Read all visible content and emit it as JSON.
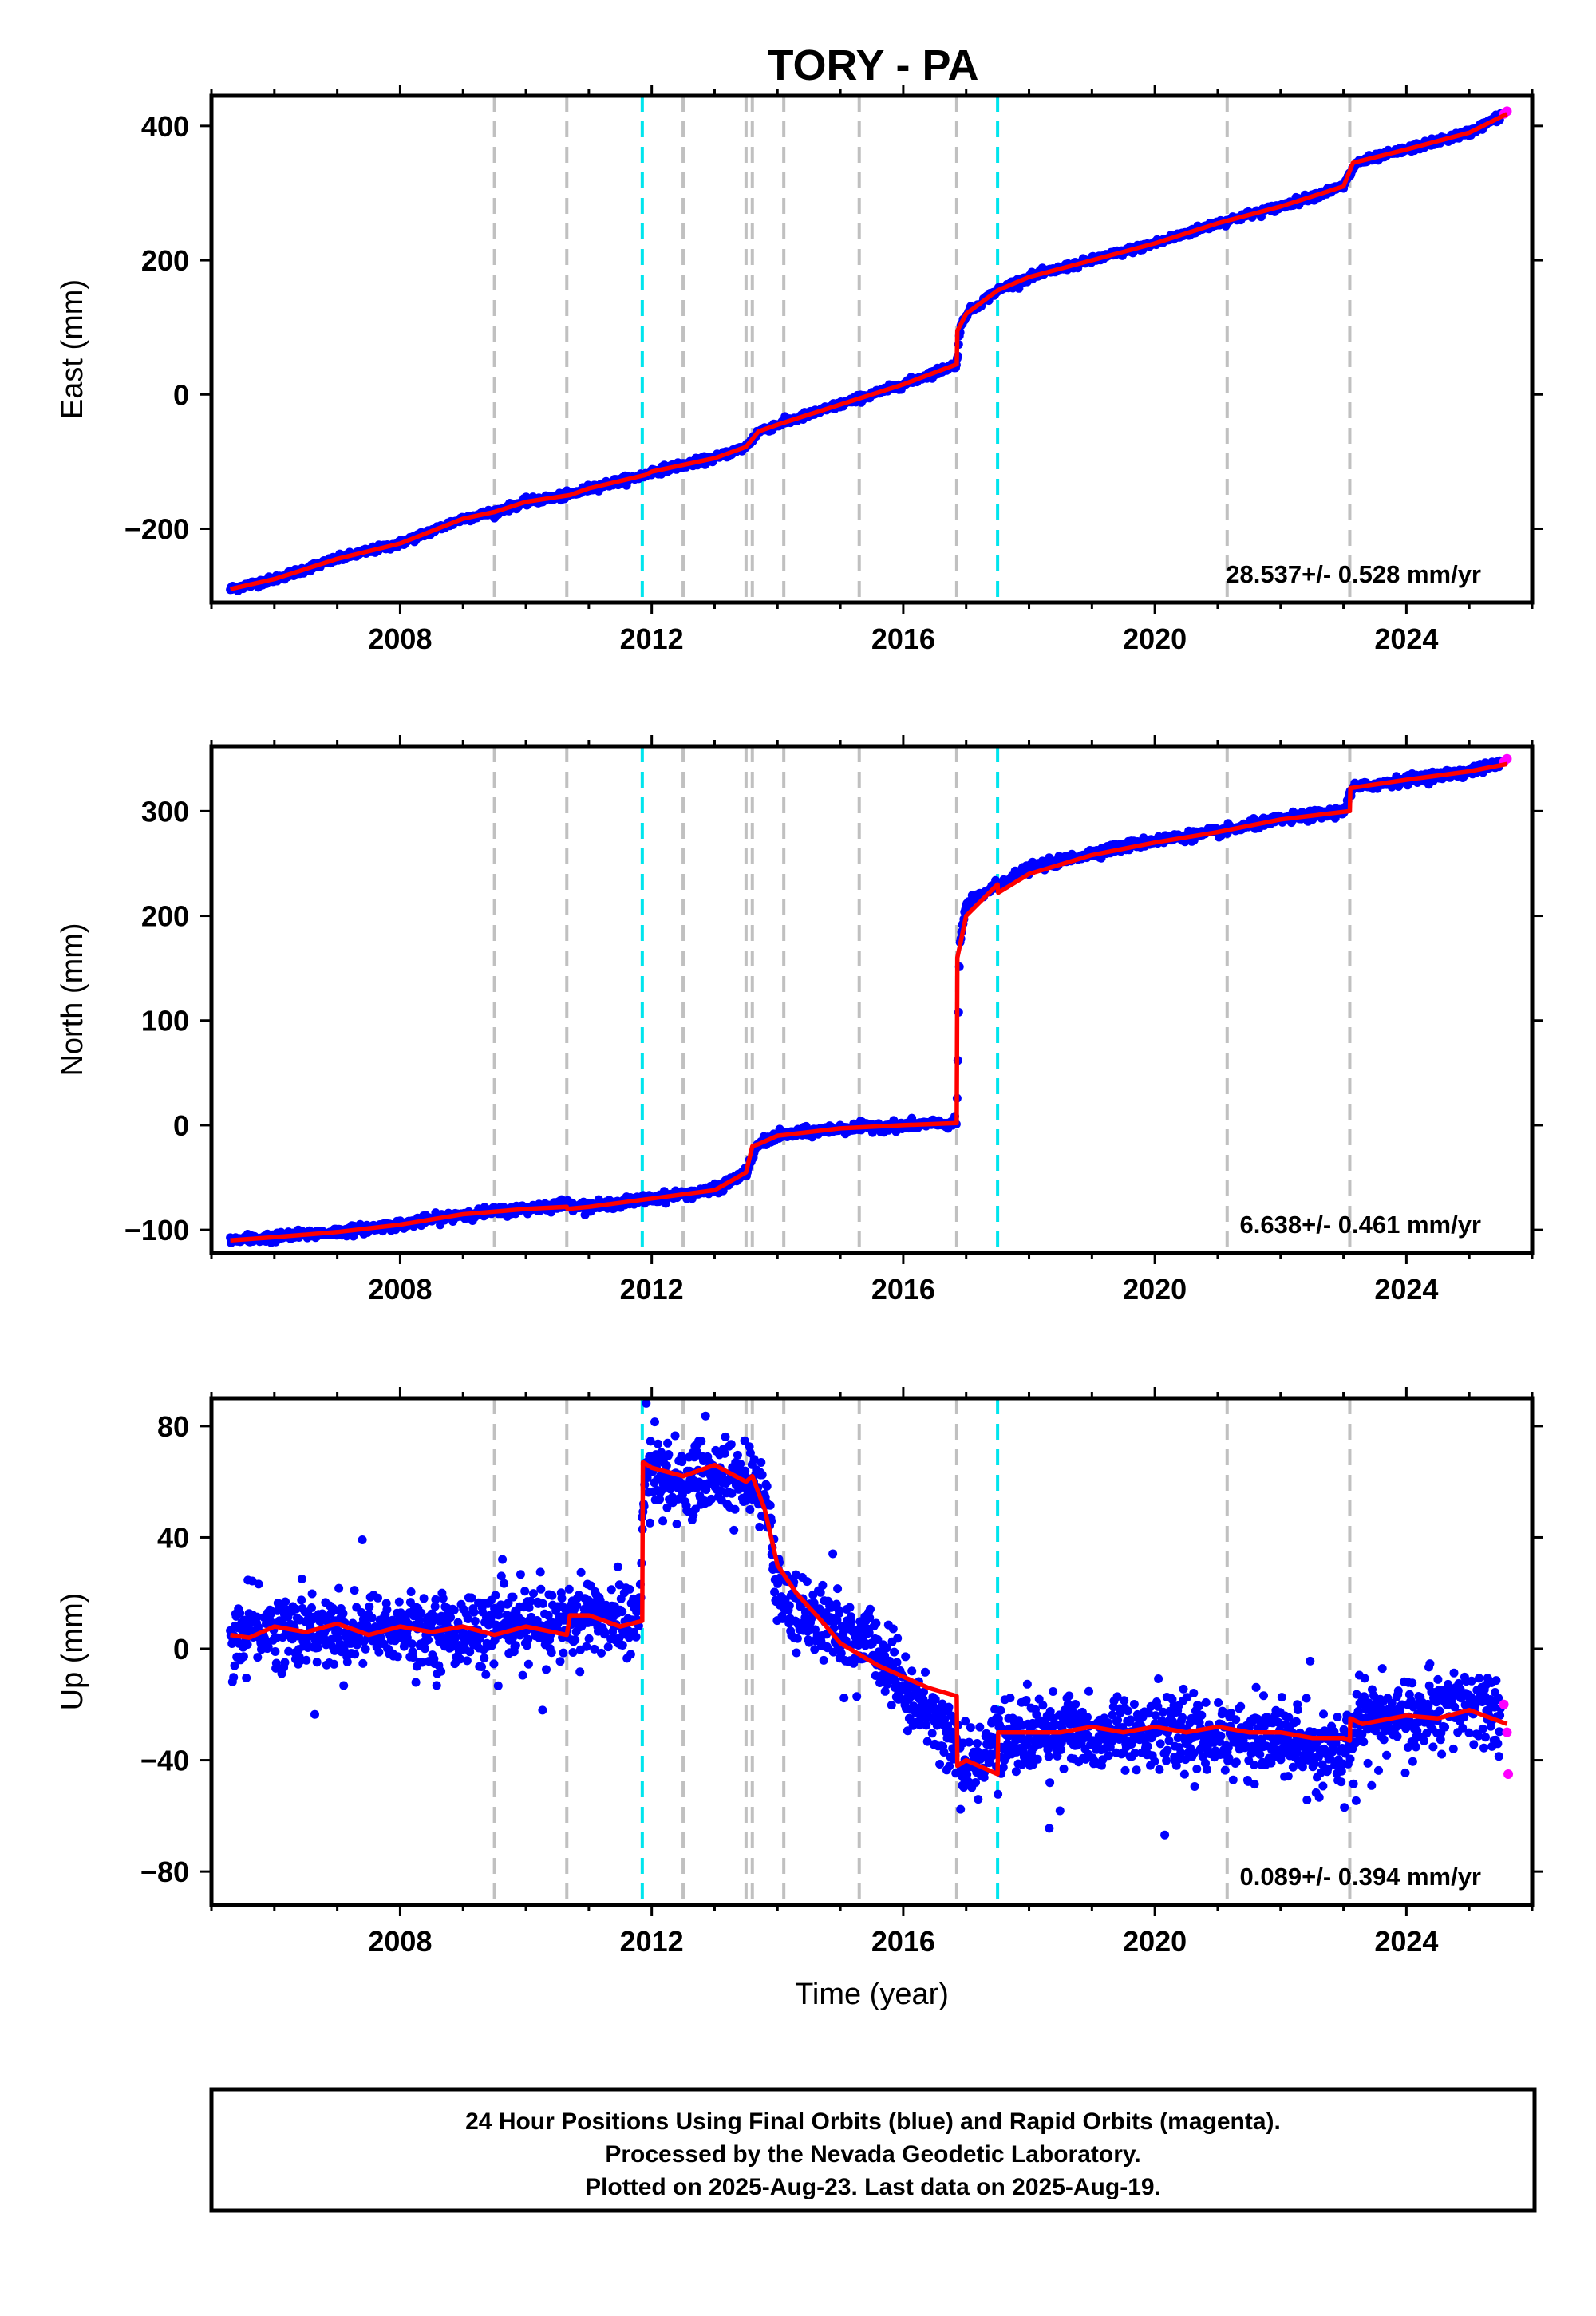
{
  "title": "TORY - PA",
  "footer": {
    "line1": "24 Hour Positions Using Final Orbits (blue) and Rapid Orbits (magenta).",
    "line2": "Processed by the Nevada Geodetic Laboratory.",
    "line3": "Plotted on 2025-Aug-23. Last data on 2025-Aug-19."
  },
  "colors": {
    "final_points": "#0000ff",
    "rapid_points": "#ff00ff",
    "model": "#ff0000",
    "gray_event": "#c0c0c0",
    "cyan_event": "#00e5ee"
  },
  "chart_data": [
    {
      "type": "scatter",
      "ylabel": "East (mm)",
      "xlabel": "",
      "xlim": [
        2005.0,
        2026.0
      ],
      "ylim": [
        -310,
        445
      ],
      "xticks": [
        2008,
        2012,
        2016,
        2020,
        2024
      ],
      "yticks": [
        -200,
        0,
        200,
        400
      ],
      "ytick_labels": [
        "−200",
        "0",
        "200",
        "400"
      ],
      "rate_label": "28.537+/- 0.528 mm/yr",
      "series": [
        {
          "name": "Final Orbits",
          "style": "points",
          "x": [
            2005.3,
            2006.0,
            2007.0,
            2008.0,
            2009.0,
            2009.5,
            2010.0,
            2010.7,
            2011.0,
            2011.9,
            2012.0,
            2013.0,
            2013.5,
            2013.7,
            2014.0,
            2015.0,
            2016.0,
            2016.85,
            2016.9,
            2017.0,
            2017.5,
            2018.0,
            2019.0,
            2020.0,
            2021.0,
            2022.0,
            2023.0,
            2023.2,
            2024.0,
            2025.0,
            2025.5
          ],
          "y": [
            -290,
            -275,
            -245,
            -222,
            -185,
            -175,
            -160,
            -150,
            -140,
            -120,
            -115,
            -95,
            -78,
            -55,
            -45,
            -15,
            15,
            45,
            95,
            120,
            155,
            175,
            200,
            225,
            255,
            280,
            310,
            345,
            365,
            390,
            415
          ]
        },
        {
          "name": "Rapid Orbits",
          "style": "points",
          "x": [
            2025.55,
            2025.6
          ],
          "y": [
            418,
            422
          ]
        },
        {
          "name": "Model",
          "style": "line",
          "x": [
            2005.3,
            2006.0,
            2007.0,
            2008.0,
            2009.0,
            2009.5,
            2010.0,
            2010.7,
            2011.0,
            2011.9,
            2012.0,
            2013.0,
            2013.5,
            2013.7,
            2014.0,
            2015.0,
            2016.0,
            2016.85,
            2016.86,
            2017.0,
            2017.5,
            2018.0,
            2019.0,
            2020.0,
            2021.0,
            2022.0,
            2023.0,
            2023.15,
            2024.0,
            2025.0,
            2025.6
          ],
          "y": [
            -290,
            -275,
            -245,
            -222,
            -185,
            -175,
            -160,
            -150,
            -140,
            -120,
            -115,
            -95,
            -78,
            -55,
            -45,
            -15,
            15,
            45,
            95,
            120,
            155,
            175,
            200,
            225,
            255,
            280,
            310,
            345,
            365,
            390,
            418
          ]
        }
      ],
      "events_gray": [
        2009.5,
        2010.65,
        2012.5,
        2013.5,
        2013.6,
        2014.1,
        2015.3,
        2016.85,
        2021.15,
        2023.1
      ],
      "events_cyan": [
        2011.85,
        2017.5
      ]
    },
    {
      "type": "scatter",
      "ylabel": "North (mm)",
      "xlabel": "",
      "xlim": [
        2005.0,
        2026.0
      ],
      "ylim": [
        -122,
        362
      ],
      "xticks": [
        2008,
        2012,
        2016,
        2020,
        2024
      ],
      "yticks": [
        -100,
        0,
        100,
        200,
        300
      ],
      "ytick_labels": [
        "−100",
        "0",
        "100",
        "200",
        "300"
      ],
      "rate_label": "6.638+/- 0.461 mm/yr",
      "series": [
        {
          "name": "Final Orbits",
          "style": "points",
          "x": [
            2005.3,
            2006.0,
            2007.0,
            2008.0,
            2009.0,
            2010.0,
            2010.65,
            2011.0,
            2012.0,
            2013.0,
            2013.5,
            2013.7,
            2014.0,
            2015.0,
            2016.0,
            2016.85,
            2016.9,
            2017.0,
            2017.5,
            2018.0,
            2019.0,
            2020.0,
            2021.0,
            2022.0,
            2023.0,
            2023.15,
            2024.0,
            2025.0,
            2025.5
          ],
          "y": [
            -110,
            -107,
            -102,
            -95,
            -85,
            -80,
            -75,
            -78,
            -70,
            -62,
            -45,
            -18,
            -10,
            -3,
            0,
            2,
            175,
            210,
            230,
            245,
            260,
            272,
            280,
            292,
            300,
            322,
            330,
            338,
            345
          ]
        },
        {
          "name": "Rapid Orbits",
          "style": "points",
          "x": [
            2025.55,
            2025.6
          ],
          "y": [
            347,
            350
          ]
        },
        {
          "name": "Model",
          "style": "line",
          "x": [
            2005.3,
            2006.0,
            2007.0,
            2008.0,
            2009.0,
            2010.0,
            2010.65,
            2010.66,
            2011.0,
            2012.0,
            2013.0,
            2013.5,
            2013.6,
            2013.7,
            2014.0,
            2015.0,
            2016.0,
            2016.85,
            2016.86,
            2017.0,
            2017.5,
            2017.51,
            2018.0,
            2019.0,
            2020.0,
            2021.0,
            2022.0,
            2023.1,
            2023.11,
            2024.0,
            2025.0,
            2025.6
          ],
          "y": [
            -110,
            -107,
            -102,
            -95,
            -85,
            -80,
            -78,
            -80,
            -78,
            -70,
            -62,
            -45,
            -20,
            -18,
            -10,
            -3,
            0,
            2,
            160,
            200,
            230,
            222,
            240,
            258,
            270,
            280,
            292,
            300,
            322,
            330,
            338,
            345
          ]
        }
      ],
      "events_gray": [
        2009.5,
        2010.65,
        2012.5,
        2013.5,
        2013.6,
        2014.1,
        2015.3,
        2016.85,
        2021.15,
        2023.1
      ],
      "events_cyan": [
        2011.85,
        2017.5
      ]
    },
    {
      "type": "scatter",
      "ylabel": "Up (mm)",
      "xlabel": "Time (year)",
      "xlim": [
        2005.0,
        2026.0
      ],
      "ylim": [
        -92,
        90
      ],
      "xticks": [
        2008,
        2012,
        2016,
        2020,
        2024
      ],
      "yticks": [
        -80,
        -40,
        0,
        40,
        80
      ],
      "ytick_labels": [
        "−80",
        "−40",
        "0",
        "40",
        "80"
      ],
      "rate_label": "0.089+/- 0.394 mm/yr",
      "series": [
        {
          "name": "Final Orbits",
          "style": "points",
          "x": [
            2005.3,
            2006.0,
            2007.0,
            2008.0,
            2009.0,
            2010.0,
            2010.7,
            2011.0,
            2011.8,
            2011.9,
            2012.5,
            2013.0,
            2013.5,
            2013.8,
            2014.0,
            2014.5,
            2015.0,
            2015.5,
            2016.0,
            2016.5,
            2016.85,
            2017.0,
            2017.5,
            2018.0,
            2019.0,
            2020.0,
            2021.0,
            2022.0,
            2022.8,
            2023.0,
            2023.2,
            2024.0,
            2025.0,
            2025.5
          ],
          "y": [
            5,
            8,
            5,
            7,
            6,
            8,
            10,
            12,
            10,
            65,
            60,
            63,
            60,
            55,
            20,
            12,
            5,
            2,
            -15,
            -25,
            -35,
            -45,
            -32,
            -30,
            -30,
            -30,
            -32,
            -32,
            -40,
            -35,
            -25,
            -25,
            -20,
            -25
          ]
        },
        {
          "name": "Rapid Orbits",
          "style": "points",
          "x": [
            2025.55,
            2025.6,
            2025.62
          ],
          "y": [
            -20,
            -30,
            -45
          ]
        },
        {
          "name": "Model",
          "style": "line",
          "x": [
            2005.3,
            2005.6,
            2006.0,
            2006.5,
            2007.0,
            2007.5,
            2008.0,
            2008.5,
            2009.0,
            2009.5,
            2010.0,
            2010.65,
            2010.7,
            2011.0,
            2011.5,
            2011.85,
            2011.86,
            2012.0,
            2012.5,
            2013.0,
            2013.5,
            2013.6,
            2013.8,
            2014.0,
            2014.3,
            2014.7,
            2015.0,
            2015.3,
            2015.6,
            2016.0,
            2016.4,
            2016.85,
            2016.86,
            2017.0,
            2017.5,
            2017.51,
            2018.0,
            2018.5,
            2019.0,
            2019.5,
            2020.0,
            2020.5,
            2021.0,
            2021.5,
            2022.0,
            2022.5,
            2023.0,
            2023.1,
            2023.11,
            2023.3,
            2024.0,
            2024.5,
            2025.0,
            2025.6
          ],
          "y": [
            5,
            4,
            8,
            6,
            9,
            5,
            8,
            6,
            8,
            5,
            8,
            5,
            12,
            12,
            8,
            10,
            67,
            65,
            62,
            66,
            60,
            62,
            50,
            30,
            20,
            10,
            2,
            -2,
            -6,
            -10,
            -14,
            -17,
            -42,
            -40,
            -45,
            -30,
            -30,
            -30,
            -28,
            -30,
            -28,
            -30,
            -28,
            -30,
            -30,
            -32,
            -32,
            -33,
            -25,
            -27,
            -24,
            -25,
            -22,
            -27
          ]
        }
      ],
      "events_gray": [
        2009.5,
        2010.65,
        2012.5,
        2013.5,
        2013.6,
        2014.1,
        2015.3,
        2016.85,
        2021.15,
        2023.1
      ],
      "events_cyan": [
        2011.85,
        2017.5
      ]
    }
  ]
}
